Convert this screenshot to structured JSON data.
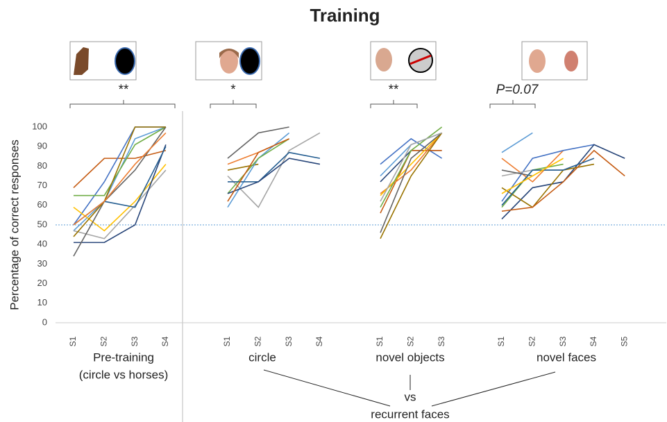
{
  "chart_data": {
    "type": "line",
    "title": "Training",
    "ylabel": "Percentage of correct responses",
    "ylim": [
      0,
      100
    ],
    "yticks": [
      0,
      10,
      20,
      30,
      40,
      50,
      60,
      70,
      80,
      90,
      100
    ],
    "reference_line": 50,
    "vs": [
      "vs",
      "recurrent faces"
    ],
    "panels": [
      {
        "label": [
          "Pre-training",
          "(circle vs horses)"
        ],
        "significance": "**",
        "categories": [
          "S1",
          "S2",
          "S3",
          "S4"
        ],
        "series": [
          {
            "color": "#c55a11",
            "values": [
              69,
              84,
              84,
              88
            ]
          },
          {
            "color": "#4472c4",
            "values": [
              50,
              72,
              100,
              100
            ]
          },
          {
            "color": "#5b9bd5",
            "values": [
              47,
              62,
              94,
              100
            ]
          },
          {
            "color": "#ffc000",
            "values": [
              59,
              47,
              62,
              81
            ]
          },
          {
            "color": "#a5a5a5",
            "values": [
              47,
              43,
              60,
              78
            ]
          },
          {
            "color": "#70ad47",
            "values": [
              65,
              65,
              91,
              100
            ]
          },
          {
            "color": "#264478",
            "values": [
              41,
              41,
              50,
              91
            ]
          },
          {
            "color": "#636363",
            "values": [
              34,
              62,
              78,
              100
            ]
          },
          {
            "color": "#997300",
            "values": [
              44,
              62,
              100,
              100
            ]
          },
          {
            "color": "#255e91",
            "values": [
              50,
              62,
              59,
              90
            ]
          },
          {
            "color": "#ed7d31",
            "values": [
              50,
              62,
              81,
              97
            ]
          }
        ]
      },
      {
        "label": [
          "circle"
        ],
        "significance": "*",
        "categories": [
          "S1",
          "S2",
          "S3",
          "S4"
        ],
        "series": [
          {
            "color": "#a5a5a5",
            "values": [
              75,
              59,
              88,
              97
            ]
          },
          {
            "color": "#636363",
            "values": [
              84,
              97,
              100,
              null
            ]
          },
          {
            "color": "#ed7d31",
            "values": [
              81,
              87,
              94,
              null
            ]
          },
          {
            "color": "#997300",
            "values": [
              78,
              81,
              null,
              null
            ]
          },
          {
            "color": "#5b9bd5",
            "values": [
              59,
              84,
              97,
              null
            ]
          },
          {
            "color": "#70ad47",
            "values": [
              66,
              84,
              94,
              null
            ]
          },
          {
            "color": "#255e91",
            "values": [
              72,
              72,
              87,
              84
            ]
          },
          {
            "color": "#264478",
            "values": [
              66,
              72,
              84,
              81
            ]
          },
          {
            "color": "#c55a11",
            "values": [
              62,
              87,
              94,
              null
            ]
          }
        ]
      },
      {
        "label": [
          "novel objects"
        ],
        "significance": "**",
        "categories": [
          "S1",
          "S2",
          "S3"
        ],
        "series": [
          {
            "color": "#4472c4",
            "values": [
              81,
              94,
              84
            ]
          },
          {
            "color": "#5b9bd5",
            "values": [
              75,
              91,
              97
            ]
          },
          {
            "color": "#264478",
            "values": [
              72,
              88,
              88
            ]
          },
          {
            "color": "#c55a11",
            "values": [
              56,
              88,
              88
            ]
          },
          {
            "color": "#ed7d31",
            "values": [
              66,
              78,
              97
            ]
          },
          {
            "color": "#ffc000",
            "values": [
              65,
              81,
              97
            ]
          },
          {
            "color": "#70ad47",
            "values": [
              59,
              88,
              100
            ]
          },
          {
            "color": "#636363",
            "values": [
              46,
              84,
              97
            ]
          },
          {
            "color": "#997300",
            "values": [
              43,
              75,
              97
            ]
          },
          {
            "color": "#a5a5a5",
            "values": [
              62,
              91,
              97
            ]
          }
        ]
      },
      {
        "label": [
          "novel faces"
        ],
        "significance": "P=0.07",
        "categories": [
          "S1",
          "S2",
          "S3",
          "S4",
          "S5"
        ],
        "series": [
          {
            "color": "#5b9bd5",
            "values": [
              87,
              97,
              null,
              null,
              null
            ]
          },
          {
            "color": "#ed7d31",
            "values": [
              84,
              72,
              88,
              null,
              null
            ]
          },
          {
            "color": "#4472c4",
            "values": [
              62,
              84,
              88,
              91,
              null
            ]
          },
          {
            "color": "#a5a5a5",
            "values": [
              75,
              78,
              78,
              null,
              null
            ]
          },
          {
            "color": "#636363",
            "values": [
              78,
              75,
              null,
              null,
              null
            ]
          },
          {
            "color": "#264478",
            "values": [
              53,
              69,
              72,
              91,
              84
            ]
          },
          {
            "color": "#70ad47",
            "values": [
              59,
              78,
              81,
              null,
              null
            ]
          },
          {
            "color": "#997300",
            "values": [
              69,
              59,
              78,
              81,
              null
            ]
          },
          {
            "color": "#c55a11",
            "values": [
              57,
              59,
              72,
              88,
              75
            ]
          },
          {
            "color": "#255e91",
            "values": [
              60,
              78,
              78,
              84,
              null
            ]
          },
          {
            "color": "#ffc000",
            "values": [
              66,
              75,
              84,
              null,
              null
            ]
          }
        ]
      }
    ]
  }
}
